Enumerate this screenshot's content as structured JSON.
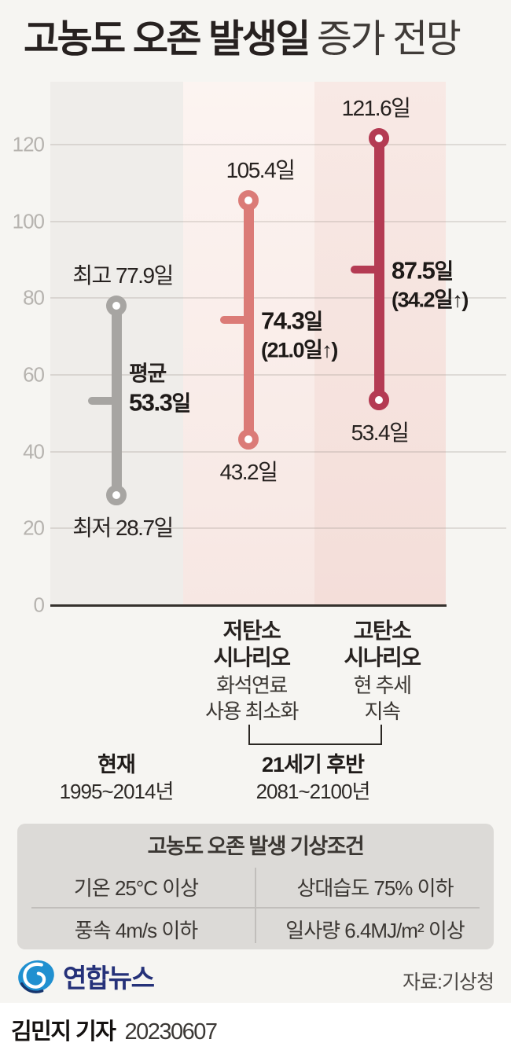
{
  "header": {
    "title_bold": "고농도 오존 발생일",
    "title_light": "증가 전망"
  },
  "chart_data": {
    "type": "range-bar",
    "title": "고농도 오존 발생일 증가 전망",
    "unit": "일",
    "ylim": [
      0,
      130
    ],
    "yticks": [
      0,
      20,
      40,
      60,
      80,
      100,
      120
    ],
    "grid": true,
    "series": [
      {
        "max": 77.9,
        "avg": 53.3,
        "min": 28.7,
        "color": "#a7a5a2",
        "labels": {
          "max": "최고 77.9일",
          "min": "최저 28.7일",
          "avg_title": "평균",
          "avg_value": "53.3",
          "avg_unit": "일",
          "avg_delta": ""
        }
      },
      {
        "max": 105.4,
        "avg": 74.3,
        "min": 43.2,
        "color": "#db7b77",
        "name_lines": [
          "저탄소",
          "시나리오"
        ],
        "desc_lines": [
          "화석연료",
          "사용 최소화"
        ],
        "labels": {
          "max": "105.4일",
          "min": "43.2일",
          "avg_value": "74.3",
          "avg_unit": "일",
          "avg_delta": "(21.0일↑)"
        }
      },
      {
        "max": 121.6,
        "avg": 87.5,
        "min": 53.4,
        "color": "#b43b53",
        "name_lines": [
          "고탄소",
          "시나리오"
        ],
        "desc_lines": [
          "현 추세",
          "지속"
        ],
        "labels": {
          "max": "121.6일",
          "min": "53.4일",
          "avg_value": "87.5",
          "avg_unit": "일",
          "avg_delta": "(34.2일↑)"
        }
      }
    ],
    "x_groups": {
      "current": {
        "name": "현재",
        "period": "1995~2014년"
      },
      "future": {
        "name": "21세기 후반",
        "period": "2081~2100년"
      }
    }
  },
  "conditions_table": {
    "title": "고농도 오존 발생 기상조건",
    "cells": [
      [
        "기온 25°C 이상",
        "상대습도 75% 이하"
      ],
      [
        "풍속 4m/s 이하",
        "일사량 6.4MJ/m² 이상"
      ]
    ]
  },
  "footer": {
    "brand": "연합뉴스",
    "source": "자료:기상청",
    "byline": "김민지 기자",
    "date": "20230607"
  }
}
